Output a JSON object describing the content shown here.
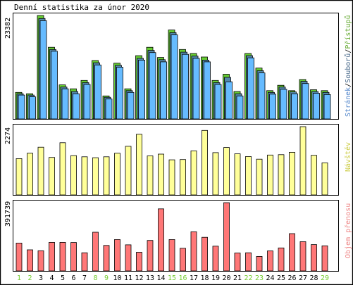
{
  "chart_data": [
    {
      "type": "bar",
      "title": "Denní statistika za únor 2020",
      "ymax_label": "23382",
      "legend": [
        "Přístupů",
        "Souborů",
        "Stránek"
      ],
      "legend_sep": "/",
      "colors": {
        "hits": "#66cc33",
        "files": "#5588aa",
        "pages": "#66bbff",
        "weekend_day": "#77cc33",
        "weekday": "#000000"
      },
      "categories": [
        "1",
        "2",
        "3",
        "4",
        "5",
        "6",
        "7",
        "8",
        "9",
        "10",
        "11",
        "12",
        "13",
        "14",
        "15",
        "16",
        "17",
        "18",
        "19",
        "20",
        "21",
        "22",
        "23",
        "24",
        "25",
        "26",
        "27",
        "28",
        "29"
      ],
      "weekend": [
        1,
        2,
        8,
        9,
        15,
        16,
        22,
        23,
        29
      ],
      "series": [
        {
          "name": "Přístupů",
          "values": [
            6000,
            5700,
            23382,
            16200,
            7700,
            6800,
            8700,
            13200,
            5200,
            12600,
            6800,
            14300,
            16200,
            13900,
            20100,
            15700,
            14800,
            14000,
            8700,
            10100,
            6200,
            14800,
            11500,
            6400,
            7600,
            6400,
            8900,
            6600,
            6400
          ]
        },
        {
          "name": "Souborů",
          "values": [
            5700,
            5400,
            22700,
            15700,
            7200,
            6200,
            8200,
            12700,
            4900,
            12100,
            6400,
            13700,
            15500,
            13400,
            19500,
            15100,
            14200,
            13300,
            8200,
            9400,
            5700,
            14300,
            10900,
            6000,
            7200,
            6100,
            8500,
            6200,
            6000
          ]
        },
        {
          "name": "Stránek",
          "values": [
            5400,
            5000,
            22200,
            15300,
            6800,
            5700,
            7800,
            12200,
            4500,
            11700,
            6000,
            13300,
            15000,
            12900,
            19000,
            14600,
            13700,
            12900,
            7800,
            8400,
            5200,
            13800,
            10400,
            5600,
            6700,
            5700,
            8000,
            5800,
            5500
          ]
        }
      ]
    },
    {
      "type": "bar",
      "ymax_label": "2274",
      "series_label": "Návštěv",
      "color": "#ffff99",
      "values": [
        1210,
        1390,
        1590,
        1250,
        1740,
        1310,
        1270,
        1240,
        1270,
        1390,
        1620,
        2020,
        1300,
        1360,
        1170,
        1180,
        1470,
        2150,
        1410,
        1580,
        1370,
        1280,
        1190,
        1330,
        1340,
        1420,
        2274,
        1320,
        1070
      ]
    },
    {
      "type": "bar",
      "ymax_label": "391739",
      "series_label": "Objem přenosu",
      "color": "#ff7777",
      "values": [
        160000,
        121000,
        116000,
        164000,
        164000,
        163000,
        104000,
        222000,
        146000,
        180000,
        150000,
        107000,
        175000,
        356000,
        180000,
        130000,
        225000,
        193000,
        142000,
        391739,
        103000,
        104000,
        83000,
        115000,
        132000,
        214000,
        168000,
        151000,
        144000
      ]
    }
  ]
}
